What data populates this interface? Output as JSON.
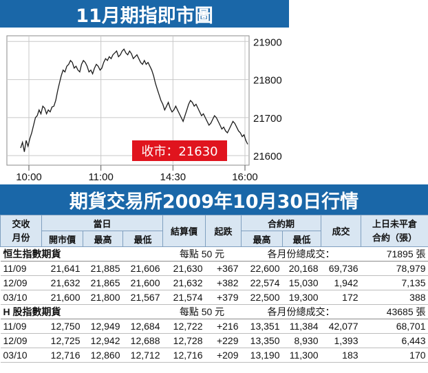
{
  "chart_title": "11月期指即市圖",
  "table_title": "期貨交易所2009年10月30日行情",
  "chart_data": {
    "type": "line",
    "title": "11月期指即市圖",
    "x_ticks": [
      "10:00",
      "11:00",
      "14:30",
      "16:00"
    ],
    "y_ticks": [
      21900,
      21800,
      21700,
      21600
    ],
    "ylim": [
      21575,
      21915
    ],
    "grid": true,
    "annotation": "收市：21630",
    "series": [
      {
        "values": [
          21620,
          21635,
          21610,
          21640,
          21625,
          21645,
          21660,
          21680,
          21700,
          21705,
          21720,
          21710,
          21730,
          21725,
          21710,
          21720,
          21715,
          21728,
          21730,
          21745,
          21770,
          21790,
          21810,
          21825,
          21820,
          21835,
          21840,
          21850,
          21845,
          21830,
          21835,
          21825,
          21820,
          21840,
          21850,
          21845,
          21835,
          21820,
          21825,
          21815,
          21830,
          21840,
          21835,
          21825,
          21830,
          21845,
          21855,
          21850,
          21860,
          21855,
          21865,
          21870,
          21875,
          21860,
          21865,
          21875,
          21880,
          21870,
          21865,
          21875,
          21868,
          21855,
          21860,
          21865,
          21855,
          21845,
          21840,
          21850,
          21840,
          21845,
          21835,
          21825,
          21810,
          21790,
          21775,
          21760,
          21745,
          21735,
          21720,
          21730,
          21740,
          21725,
          21715,
          21720,
          21730,
          21720,
          21710,
          21700,
          21690,
          21705,
          21720,
          21735,
          21745,
          21740,
          21730,
          21735,
          21725,
          21715,
          21705,
          21710,
          21700,
          21690,
          21680,
          21685,
          21695,
          21705,
          21700,
          21690,
          21680,
          21670,
          21675,
          21665,
          21660,
          21670,
          21680,
          21690,
          21685,
          21675,
          21665,
          21660,
          21650,
          21655,
          21640,
          21630
        ]
      }
    ]
  },
  "table": {
    "header_row1": {
      "month": "交收\n月份",
      "today": "當日",
      "settlement": "結算價",
      "change": "起跌",
      "contract_period": "合約期",
      "volume": "成交",
      "open_interest": "上日未平倉\n合約（張）"
    },
    "header_row2": [
      "開市價",
      "最高",
      "最低",
      "最高",
      "最低"
    ],
    "groups": [
      {
        "name": "恒生指數期貨",
        "point_value": "每點 50 元",
        "volume_label": "各月份總成交：",
        "volume_total": "71895 張",
        "rows": [
          [
            "11/09",
            "21,641",
            "21,885",
            "21,606",
            "21,630",
            "+367",
            "22,600",
            "20,168",
            "69,736",
            "78,979"
          ],
          [
            "12/09",
            "21,632",
            "21,865",
            "21,600",
            "21,632",
            "+382",
            "22,574",
            "15,030",
            "1,942",
            "7,135"
          ],
          [
            "03/10",
            "21,600",
            "21,800",
            "21,567",
            "21,574",
            "+379",
            "22,500",
            "19,300",
            "172",
            "388"
          ]
        ]
      },
      {
        "name": "H 股指數期貨",
        "point_value": "每點 50 元",
        "volume_label": "各月份總成交：",
        "volume_total": "43685 張",
        "rows": [
          [
            "11/09",
            "12,750",
            "12,949",
            "12,684",
            "12,722",
            "+216",
            "13,351",
            "11,384",
            "42,077",
            "68,701"
          ],
          [
            "12/09",
            "12,725",
            "12,942",
            "12,688",
            "12,728",
            "+229",
            "13,350",
            "8,930",
            "1,393",
            "6,443"
          ],
          [
            "03/10",
            "12,716",
            "12,860",
            "12,712",
            "12,716",
            "+209",
            "13,190",
            "11,300",
            "183",
            "170"
          ]
        ]
      }
    ]
  },
  "colors": {
    "title_bar": "#1a67a8",
    "annotation_bg": "#e0141e",
    "header_bg": "#d9e6f2"
  }
}
